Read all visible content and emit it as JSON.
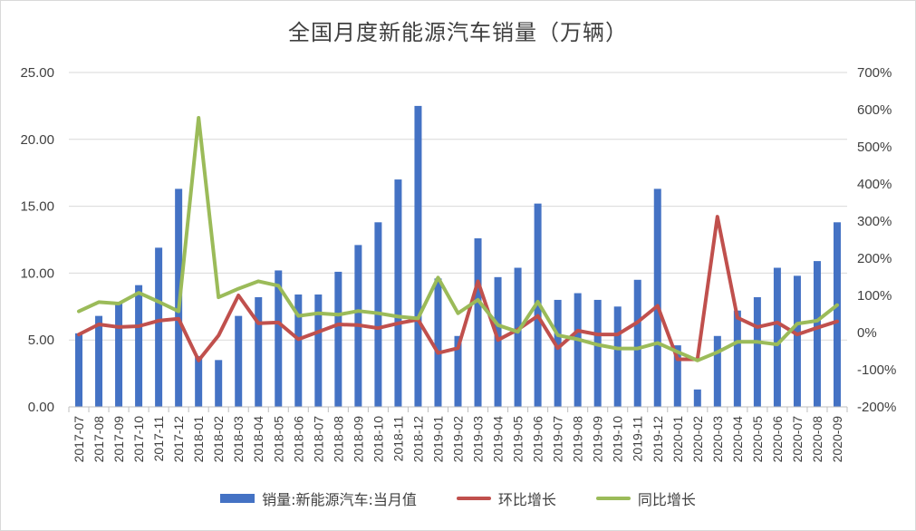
{
  "chart_data": {
    "type": "bar+line",
    "title": "全国月度新能源汽车销量（万辆）",
    "categories": [
      "2017-07",
      "2017-08",
      "2017-09",
      "2017-10",
      "2017-11",
      "2017-12",
      "2018-01",
      "2018-02",
      "2018-03",
      "2018-04",
      "2018-05",
      "2018-06",
      "2018-07",
      "2018-08",
      "2018-09",
      "2018-10",
      "2018-11",
      "2018-12",
      "2019-01",
      "2019-02",
      "2019-03",
      "2019-04",
      "2019-05",
      "2019-06",
      "2019-07",
      "2019-08",
      "2019-09",
      "2019-10",
      "2019-11",
      "2019-12",
      "2020-01",
      "2020-02",
      "2020-03",
      "2020-04",
      "2020-05",
      "2020-06",
      "2020-07",
      "2020-08",
      "2020-09"
    ],
    "left_axis": {
      "ylim": [
        0,
        25
      ],
      "ticks": [
        "0.00",
        "5.00",
        "10.00",
        "15.00",
        "20.00",
        "25.00"
      ]
    },
    "right_axis": {
      "ylim": [
        -200,
        700
      ],
      "ticks": [
        "-200%",
        "-100%",
        "0%",
        "100%",
        "200%",
        "300%",
        "400%",
        "500%",
        "600%",
        "700%"
      ]
    },
    "series": [
      {
        "name": "销量:新能源汽车:当月值",
        "type": "bar",
        "axis": "left",
        "color": "#4472c4",
        "values": [
          5.5,
          6.8,
          7.8,
          9.1,
          11.9,
          16.3,
          3.8,
          3.5,
          6.8,
          8.2,
          10.2,
          8.4,
          8.4,
          10.1,
          12.1,
          13.8,
          17.0,
          22.5,
          9.6,
          5.3,
          12.6,
          9.7,
          10.4,
          15.2,
          8.0,
          8.5,
          8.0,
          7.5,
          9.5,
          16.3,
          4.6,
          1.3,
          5.3,
          7.2,
          8.2,
          10.4,
          9.8,
          10.9,
          13.8
        ]
      },
      {
        "name": "环比增长",
        "type": "line",
        "axis": "right",
        "color": "#c0504d",
        "values": [
          -5,
          22,
          15,
          17,
          32,
          37,
          -75,
          -8,
          100,
          25,
          27,
          -18,
          2,
          22,
          20,
          12,
          25,
          35,
          -55,
          -42,
          138,
          -20,
          8,
          45,
          -42,
          5,
          -5,
          -5,
          28,
          72,
          -72,
          -72,
          312,
          40,
          15,
          27,
          -5,
          13,
          30
        ]
      },
      {
        "name": "同比增长",
        "type": "line",
        "axis": "right",
        "color": "#9bbb59",
        "values": [
          57,
          82,
          78,
          107,
          83,
          57,
          578,
          95,
          118,
          138,
          126,
          45,
          52,
          48,
          58,
          52,
          43,
          38,
          148,
          52,
          88,
          20,
          2,
          83,
          -7,
          -18,
          -33,
          -43,
          -43,
          -28,
          -52,
          -75,
          -53,
          -25,
          -25,
          -32,
          24,
          32,
          74
        ]
      }
    ]
  }
}
